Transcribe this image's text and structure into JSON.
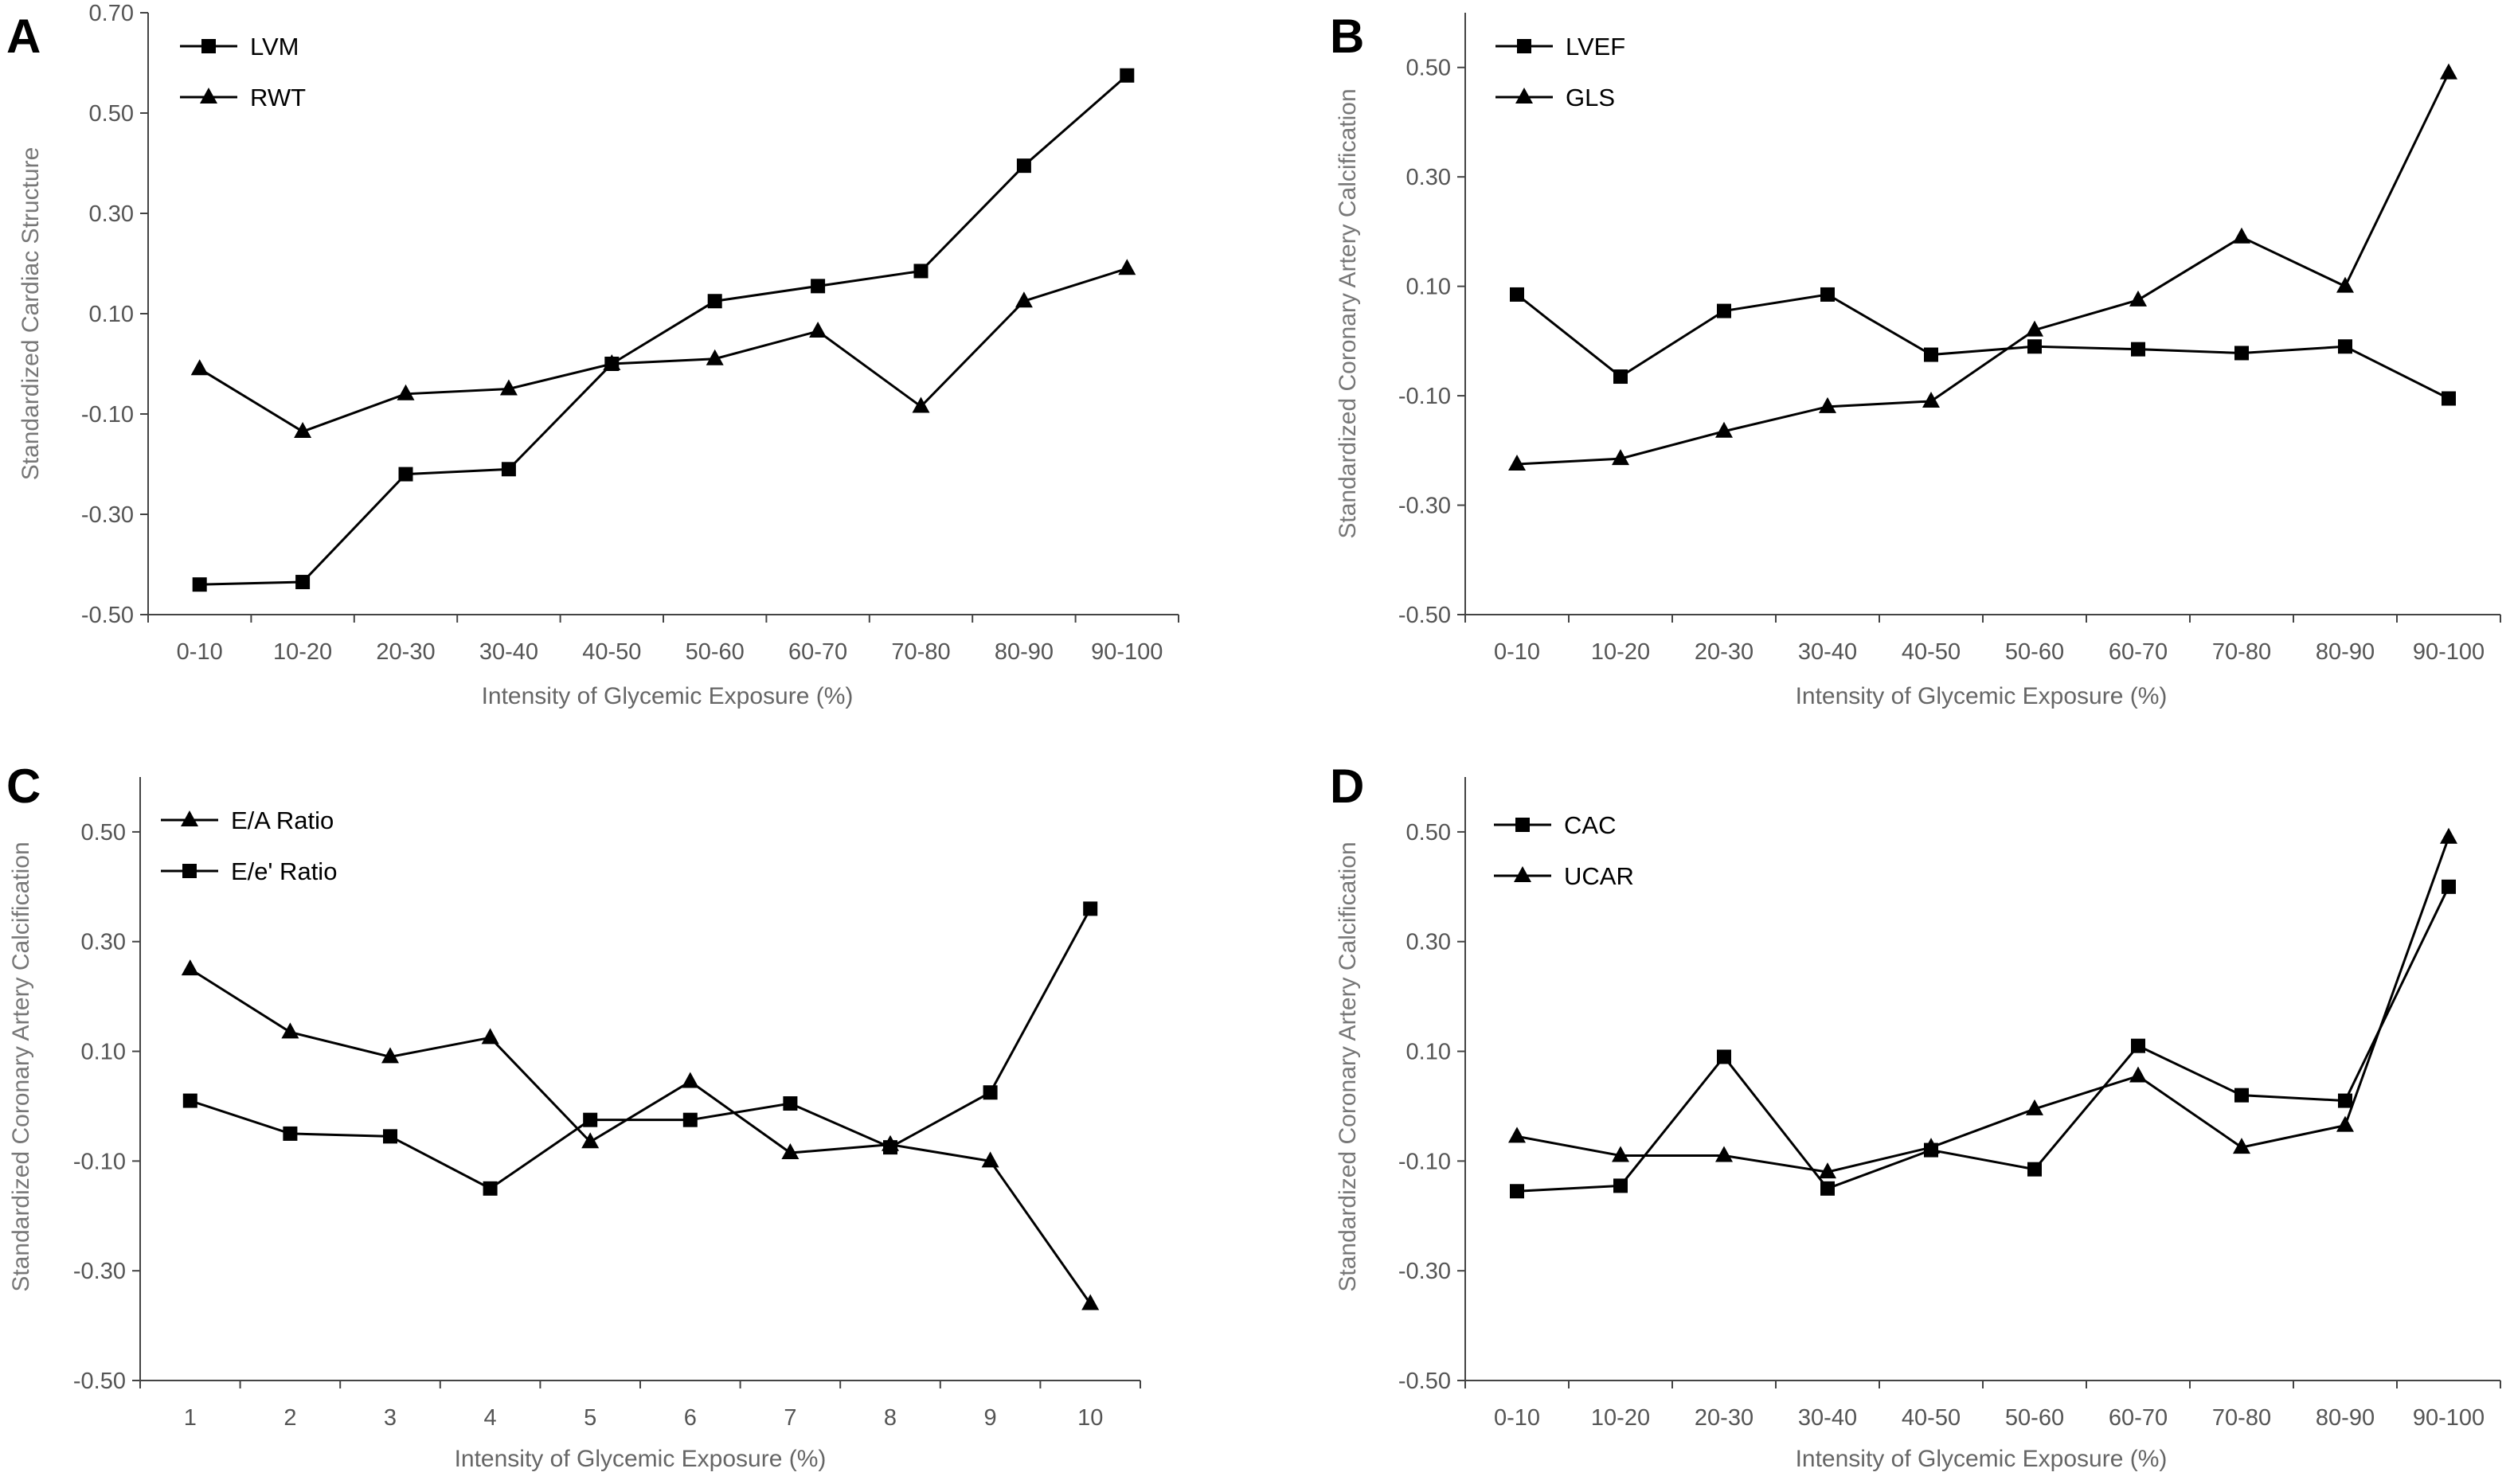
{
  "chart_data": [
    {
      "panel_label": "A",
      "type": "line",
      "xlabel": "Intensity of Glycemic Exposure (%)",
      "ylabel": "Standardized Cardiac Structure",
      "ylim": [
        -0.5,
        0.7
      ],
      "yticks": [
        "-0.50",
        "-0.30",
        "-0.10",
        "0.10",
        "0.30",
        "0.50",
        "0.70"
      ],
      "categories": [
        "0-10",
        "10-20",
        "20-30",
        "30-40",
        "40-50",
        "50-60",
        "60-70",
        "70-80",
        "80-90",
        "90-100"
      ],
      "legend_position": "top-left",
      "series": [
        {
          "name": "LVM",
          "marker": "square",
          "values": [
            -0.44,
            -0.435,
            -0.22,
            -0.21,
            0.0,
            0.125,
            0.155,
            0.185,
            0.395,
            0.575
          ]
        },
        {
          "name": "RWT",
          "marker": "triangle",
          "values": [
            -0.01,
            -0.135,
            -0.06,
            -0.05,
            0.0,
            0.01,
            0.065,
            -0.085,
            0.125,
            0.19
          ]
        }
      ]
    },
    {
      "panel_label": "B",
      "type": "line",
      "xlabel": "Intensity of Glycemic Exposure (%)",
      "ylabel": "Standardized Coronary Artery Calcification",
      "ylim": [
        -0.5,
        0.6
      ],
      "yticks": [
        "-0.50",
        "-0.30",
        "-0.10",
        "0.10",
        "0.30",
        "0.50"
      ],
      "categories": [
        "0-10",
        "10-20",
        "20-30",
        "30-40",
        "40-50",
        "50-60",
        "60-70",
        "70-80",
        "80-90",
        "90-100"
      ],
      "legend_position": "top-left",
      "series": [
        {
          "name": "LVEF",
          "marker": "square",
          "values": [
            0.085,
            -0.065,
            0.055,
            0.085,
            -0.025,
            -0.01,
            -0.015,
            -0.022,
            -0.01,
            -0.105
          ]
        },
        {
          "name": "GLS",
          "marker": "triangle",
          "values": [
            -0.225,
            -0.215,
            -0.165,
            -0.12,
            -0.11,
            0.02,
            0.075,
            0.19,
            0.1,
            0.49
          ]
        }
      ]
    },
    {
      "panel_label": "C",
      "type": "line",
      "xlabel": "Intensity of Glycemic Exposure (%)",
      "ylabel": "Standardized Coronary Artery Calcification",
      "ylim": [
        -0.5,
        0.6
      ],
      "yticks": [
        "-0.50",
        "-0.30",
        "-0.10",
        "0.10",
        "0.30",
        "0.50"
      ],
      "categories": [
        "1",
        "2",
        "3",
        "4",
        "5",
        "6",
        "7",
        "8",
        "9",
        "10"
      ],
      "legend_position": "top-left",
      "series": [
        {
          "name": "E/A Ratio",
          "marker": "triangle",
          "values": [
            0.25,
            0.135,
            0.09,
            0.125,
            -0.065,
            0.045,
            -0.085,
            -0.07,
            -0.1,
            -0.36
          ]
        },
        {
          "name": "E/e' Ratio",
          "marker": "square",
          "values": [
            0.01,
            -0.05,
            -0.055,
            -0.15,
            -0.025,
            -0.025,
            0.005,
            -0.075,
            0.025,
            0.36
          ]
        }
      ]
    },
    {
      "panel_label": "D",
      "type": "line",
      "xlabel": "Intensity of Glycemic Exposure (%)",
      "ylabel": "Standardized Coronary Artery Calcification",
      "ylim": [
        -0.5,
        0.6
      ],
      "yticks": [
        "-0.50",
        "-0.30",
        "-0.10",
        "0.10",
        "0.30",
        "0.50"
      ],
      "categories": [
        "0-10",
        "10-20",
        "20-30",
        "30-40",
        "40-50",
        "50-60",
        "60-70",
        "70-80",
        "80-90",
        "90-100"
      ],
      "legend_position": "top-left",
      "series": [
        {
          "name": "CAC",
          "marker": "square",
          "values": [
            -0.155,
            -0.145,
            0.09,
            -0.15,
            -0.08,
            -0.115,
            0.11,
            0.02,
            0.01,
            0.4
          ]
        },
        {
          "name": "UCAR",
          "marker": "triangle",
          "values": [
            -0.055,
            -0.09,
            -0.09,
            -0.12,
            -0.075,
            -0.005,
            0.055,
            -0.075,
            -0.035,
            0.49
          ]
        }
      ]
    }
  ]
}
